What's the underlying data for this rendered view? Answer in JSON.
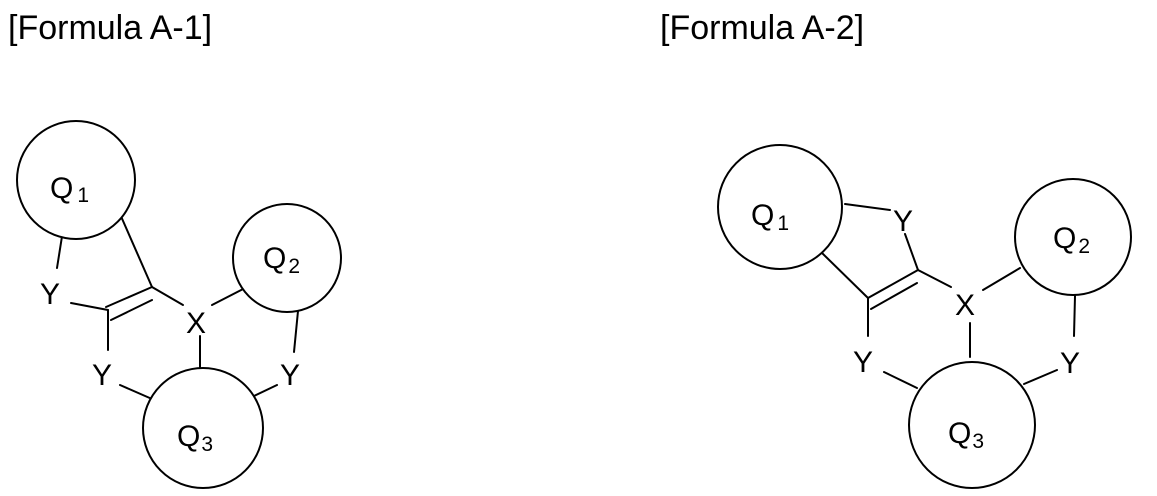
{
  "formulas": [
    {
      "title": "[Formula A-1]",
      "rings": {
        "q1": "Q",
        "q1_sub": "1",
        "q2": "Q",
        "q2_sub": "2",
        "q3": "Q",
        "q3_sub": "3"
      },
      "atoms": {
        "x": "X",
        "y_a": "Y",
        "y_b": "Y",
        "y_c": "Y"
      }
    },
    {
      "title": "[Formula A-2]",
      "rings": {
        "q1": "Q",
        "q1_sub": "1",
        "q2": "Q",
        "q2_sub": "2",
        "q3": "Q",
        "q3_sub": "3"
      },
      "atoms": {
        "x": "X",
        "y_a": "Y",
        "y_b": "Y",
        "y_c": "Y"
      }
    }
  ]
}
